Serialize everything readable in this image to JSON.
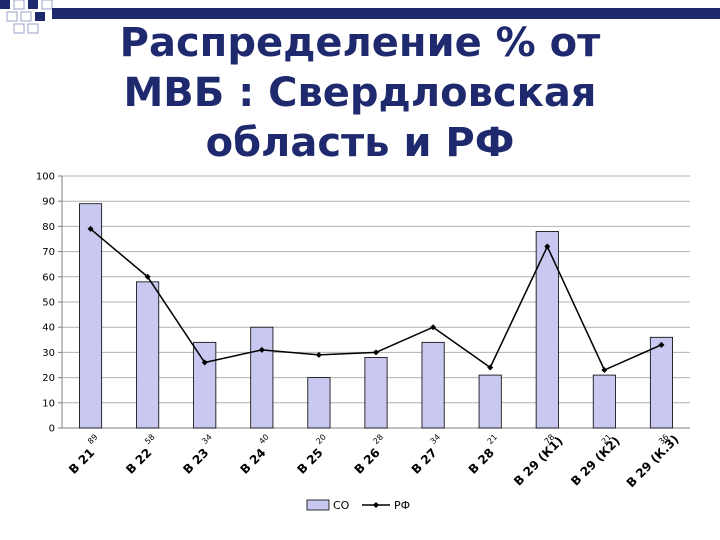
{
  "title_lines": [
    "Распределение % от",
    "МВБ : Свердловская",
    "область и РФ"
  ],
  "colors": {
    "accent": "#1f2a6e",
    "bar_fill": "#c8c8f0",
    "bar_stroke": "#000000",
    "line": "#000000"
  },
  "chart_data": {
    "type": "bar",
    "title": "Распределение % от МВБ : Свердловская область и РФ",
    "categories": [
      "В 21",
      "В 22",
      "В 23",
      "В 24",
      "В 25",
      "В 26",
      "В 27",
      "В 28",
      "В 29 (К1)",
      "В 29 (К2)",
      "В 29 (К.3)"
    ],
    "series": [
      {
        "name": "СО",
        "type": "bar",
        "values": [
          89,
          58,
          34,
          40,
          20,
          28,
          34,
          21,
          78,
          21,
          36
        ]
      },
      {
        "name": "РФ",
        "type": "line",
        "values": [
          79,
          60,
          26,
          31,
          29,
          30,
          40,
          24,
          72,
          23,
          33
        ]
      }
    ],
    "data_labels": [
      "89",
      "58",
      "34",
      "40",
      "20",
      "28",
      "34",
      "21",
      "78",
      "21",
      "36"
    ],
    "y_ticks": [
      "0",
      "10",
      "20",
      "30",
      "40",
      "50",
      "60",
      "70",
      "80",
      "90",
      "100"
    ],
    "ylim": [
      0,
      100
    ],
    "grid": true,
    "legend_position": "bottom"
  }
}
